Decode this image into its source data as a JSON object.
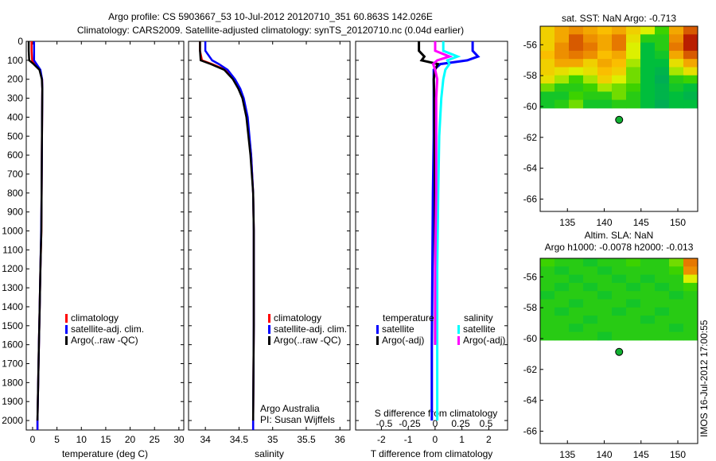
{
  "title_line1": "Argo profile: CS 5903667_53 10-Jul-2012 20120710_351 60.863S 142.026E",
  "title_line2": "Climatology: CARS2009. Satellite-adjusted climatology: synTS_20120710.nc (0.04d earlier)",
  "timestamp": "IMOS 16-Jul-2012 17:00:55",
  "chart_data": [
    {
      "type": "line",
      "name": "temperature",
      "xlabel": "temperature (deg C)",
      "ylabel": "depth",
      "xlim": [
        -1.3,
        31
      ],
      "ylim": [
        2050,
        0
      ],
      "xticks": [
        0,
        5,
        10,
        15,
        20,
        25,
        30
      ],
      "yticks": [
        0,
        100,
        200,
        300,
        400,
        500,
        600,
        700,
        800,
        900,
        1000,
        1100,
        1200,
        1300,
        1400,
        1500,
        1600,
        1700,
        1800,
        1900,
        2000
      ],
      "depth": [
        0,
        50,
        100,
        120,
        150,
        200,
        250,
        400,
        600,
        800,
        1000,
        1200,
        1400,
        1600,
        1800,
        2000,
        2050
      ],
      "series": [
        {
          "name": "climatology",
          "color": "#ff0000",
          "values": [
            -0.2,
            -0.2,
            -0.1,
            0.5,
            1.5,
            1.95,
            2.0,
            1.95,
            1.9,
            1.85,
            1.8,
            1.6,
            1.45,
            1.3,
            1.15,
            1.0,
            1.0
          ]
        },
        {
          "name": "satellite-adj. clim.",
          "color": "#0000ff",
          "values": [
            0.3,
            0.3,
            0.3,
            0.8,
            1.6,
            1.95,
            2.0,
            1.95,
            1.9,
            1.85,
            1.75,
            1.6,
            1.45,
            1.3,
            1.15,
            1.0,
            1.0
          ]
        },
        {
          "name": "Argo(..raw -QC)",
          "color": "#000000",
          "values": [
            -0.8,
            -0.8,
            -0.7,
            0.2,
            1.4,
            1.9,
            2.0,
            1.95,
            1.9,
            1.85,
            1.8,
            1.6,
            1.45,
            1.3,
            1.15,
            1.0,
            null
          ]
        }
      ]
    },
    {
      "type": "line",
      "name": "salinity",
      "xlabel": "salinity",
      "xlim": [
        33.75,
        36.15
      ],
      "ylim": [
        2050,
        0
      ],
      "xticks": [
        34,
        34.5,
        35,
        35.5,
        36
      ],
      "depth": [
        0,
        50,
        100,
        120,
        150,
        200,
        250,
        300,
        400,
        600,
        800,
        1000,
        1200,
        1500,
        2000,
        2050
      ],
      "series": [
        {
          "name": "climatology",
          "color": "#ff0000",
          "values": [
            33.92,
            33.92,
            33.95,
            34.1,
            34.3,
            34.42,
            34.5,
            34.56,
            34.62,
            34.68,
            34.71,
            34.72,
            34.72,
            34.72,
            34.71,
            34.71
          ]
        },
        {
          "name": "satellite-adj. clim.",
          "color": "#0000ff",
          "values": [
            34.0,
            34.0,
            34.1,
            34.2,
            34.33,
            34.44,
            34.52,
            34.57,
            34.63,
            34.68,
            34.71,
            34.72,
            34.72,
            34.72,
            34.71,
            34.71
          ]
        },
        {
          "name": "Argo(..raw -QC)",
          "color": "#000000",
          "values": [
            33.92,
            33.92,
            33.93,
            34.08,
            34.28,
            34.41,
            34.49,
            34.55,
            34.61,
            34.67,
            34.71,
            34.72,
            34.72,
            34.72,
            34.71,
            null
          ]
        }
      ],
      "annotation": [
        "Argo Australia",
        "PI: Susan Wijffels"
      ]
    },
    {
      "type": "line",
      "name": "differences",
      "xlabel": "T difference from climatology",
      "x2label": "S difference from climatology",
      "xlim": [
        -2.96,
        2.7
      ],
      "xticks": [
        -2,
        -1,
        0,
        1,
        2
      ],
      "x2ticks": [
        -0.5,
        -0.25,
        0,
        0.25,
        0.5
      ],
      "ylim": [
        2050,
        0
      ],
      "depth": [
        0,
        50,
        80,
        100,
        120,
        150,
        200,
        300,
        500,
        800,
        1200,
        1600,
        2000
      ],
      "legend_headers": [
        "temperature",
        "salinity"
      ],
      "series": [
        {
          "name": "satellite",
          "group": "temperature",
          "color": "#0000ff",
          "axis": "T",
          "values": [
            1.4,
            1.4,
            1.6,
            1.2,
            0.2,
            -0.05,
            -0.05,
            -0.05,
            -0.05,
            -0.08,
            -0.1,
            -0.12,
            -0.12
          ]
        },
        {
          "name": "Argo(-adj)",
          "group": "temperature",
          "color": "#000000",
          "axis": "T",
          "values": [
            -0.6,
            -0.6,
            -0.4,
            -0.5,
            0.1,
            0,
            -0.05,
            -0.03,
            -0.02,
            0,
            0,
            0,
            null
          ]
        },
        {
          "name": "satellite",
          "group": "salinity",
          "color": "#00ffff",
          "axis": "S",
          "values": [
            0.08,
            0.08,
            0.22,
            0.12,
            0.14,
            0.1,
            0.08,
            0.06,
            0.04,
            0.03,
            0.02,
            0.02,
            0.02
          ]
        },
        {
          "name": "Argo(-adj)",
          "group": "salinity",
          "color": "#ff00ff",
          "axis": "S",
          "values": [
            0,
            0,
            0.14,
            0.02,
            -0.02,
            0,
            0.02,
            0.01,
            0.01,
            0.01,
            0,
            0,
            null
          ]
        }
      ]
    },
    {
      "type": "heatmap",
      "name": "sst-map",
      "title": "sat. SST: NaN Argo: -0.713",
      "xlim": [
        131.3,
        152.7
      ],
      "ylim": [
        -66.8,
        -54.8
      ],
      "xticks": [
        135,
        140,
        145,
        150
      ],
      "yticks": [
        -56,
        -58,
        -60,
        -62,
        -64,
        -66
      ],
      "data_lat_min": -60.1,
      "grid_lon": [
        131.5,
        133.5,
        135.5,
        137.5,
        139.5,
        141.5,
        143.5,
        145.5,
        147.5,
        149.5,
        151.5
      ],
      "grid_lat": [
        -55.25,
        -55.75,
        -56.25,
        -56.75,
        -57.25,
        -57.75,
        -58.25,
        -58.75,
        -59.25,
        -59.75
      ],
      "values": [
        [
          0.6,
          0.7,
          0.75,
          0.7,
          0.65,
          0.7,
          0.6,
          0.5,
          0.35,
          0.7,
          0.85
        ],
        [
          0.6,
          0.7,
          0.85,
          0.75,
          0.7,
          0.8,
          0.55,
          0.3,
          0.3,
          0.75,
          0.95
        ],
        [
          0.6,
          0.75,
          0.85,
          0.8,
          0.7,
          0.8,
          0.5,
          0.2,
          0.3,
          0.8,
          0.95
        ],
        [
          0.65,
          0.75,
          0.8,
          0.75,
          0.65,
          0.7,
          0.5,
          0.2,
          0.25,
          0.7,
          0.85
        ],
        [
          0.6,
          0.7,
          0.7,
          0.6,
          0.7,
          0.65,
          0.45,
          0.2,
          0.2,
          0.55,
          0.7
        ],
        [
          0.6,
          0.55,
          0.5,
          0.55,
          0.65,
          0.6,
          0.4,
          0.2,
          0.15,
          0.45,
          0.55
        ],
        [
          0.55,
          0.45,
          0.35,
          0.45,
          0.6,
          0.5,
          0.4,
          0.2,
          0.12,
          0.3,
          0.35
        ],
        [
          0.4,
          0.3,
          0.3,
          0.35,
          0.45,
          0.4,
          0.35,
          0.2,
          0.15,
          0.25,
          0.2
        ],
        [
          0.25,
          0.25,
          0.35,
          0.3,
          0.3,
          0.4,
          0.3,
          0.2,
          0.15,
          0.2,
          0.15
        ],
        [
          0.25,
          0.3,
          0.4,
          0.25,
          0.25,
          0.3,
          0.3,
          0.2,
          0.12,
          0.2,
          0.2
        ]
      ]
    },
    {
      "type": "heatmap",
      "name": "sla-map",
      "title": "Altim. SLA: NaN",
      "subtitle": "Argo h1000: -0.0078 h2000: -0.013",
      "xlim": [
        131.3,
        152.7
      ],
      "ylim": [
        -66.8,
        -54.8
      ],
      "xticks": [
        135,
        140,
        145,
        150
      ],
      "yticks": [
        -56,
        -58,
        -60,
        -62,
        -64,
        -66
      ],
      "data_lat_min": -60.1,
      "grid_lon": [
        131.5,
        133.5,
        135.5,
        137.5,
        139.5,
        141.5,
        143.5,
        145.5,
        147.5,
        149.5,
        151.5
      ],
      "grid_lat": [
        -55.25,
        -55.75,
        -56.25,
        -56.75,
        -57.25,
        -57.75,
        -58.25,
        -58.75,
        -59.25,
        -59.75
      ],
      "values": [
        [
          0.35,
          0.3,
          0.3,
          0.25,
          0.3,
          0.3,
          0.35,
          0.3,
          0.3,
          0.4,
          0.8
        ],
        [
          0.3,
          0.25,
          0.3,
          0.3,
          0.25,
          0.3,
          0.3,
          0.3,
          0.3,
          0.35,
          0.75
        ],
        [
          0.3,
          0.3,
          0.25,
          0.3,
          0.3,
          0.25,
          0.3,
          0.25,
          0.3,
          0.3,
          0.5
        ],
        [
          0.3,
          0.25,
          0.3,
          0.25,
          0.3,
          0.3,
          0.25,
          0.3,
          0.25,
          0.3,
          0.35
        ],
        [
          0.25,
          0.3,
          0.3,
          0.3,
          0.25,
          0.3,
          0.3,
          0.3,
          0.3,
          0.25,
          0.3
        ],
        [
          0.3,
          0.3,
          0.25,
          0.3,
          0.3,
          0.3,
          0.25,
          0.3,
          0.3,
          0.3,
          0.3
        ],
        [
          0.3,
          0.25,
          0.3,
          0.3,
          0.3,
          0.25,
          0.3,
          0.3,
          0.25,
          0.3,
          0.3
        ],
        [
          0.3,
          0.3,
          0.3,
          0.25,
          0.3,
          0.3,
          0.3,
          0.25,
          0.3,
          0.3,
          0.3
        ],
        [
          0.3,
          0.3,
          0.25,
          0.3,
          0.3,
          0.3,
          0.3,
          0.3,
          0.3,
          0.25,
          0.3
        ],
        [
          0.3,
          0.3,
          0.3,
          0.3,
          0.25,
          0.3,
          0.3,
          0.3,
          0.3,
          0.3,
          0.3
        ]
      ]
    }
  ],
  "argo_position": {
    "lon": 142.026,
    "lat": -60.863
  }
}
